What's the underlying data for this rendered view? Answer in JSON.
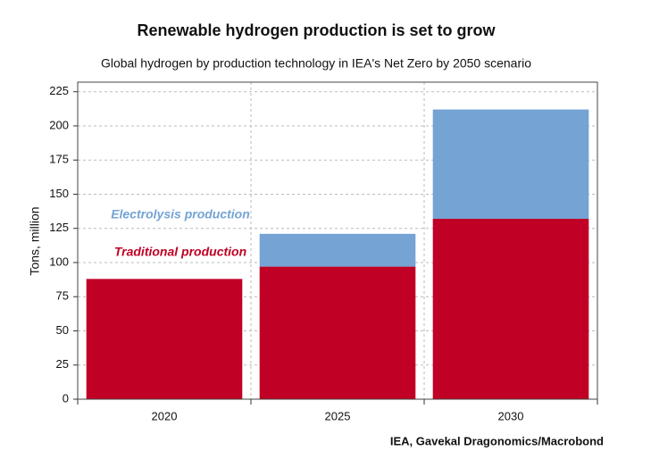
{
  "chart_data": {
    "type": "stacked_bar",
    "title": "Renewable hydrogen production is set to grow",
    "subtitle": "Global hydrogen by production technology in IEA's Net Zero by 2050 scenario",
    "y_label": "Tons, million",
    "source": "IEA, Gavekal Dragonomics/Macrobond",
    "categories": [
      "2020",
      "2025",
      "2030"
    ],
    "series": [
      {
        "name": "Traditional production",
        "color": "#c00024",
        "values": [
          88,
          97,
          132
        ]
      },
      {
        "name": "Electrolysis production",
        "color": "#74a3d4",
        "values": [
          0,
          24,
          80
        ]
      }
    ],
    "ylim": [
      0,
      232
    ],
    "yticks": [
      0,
      25,
      50,
      75,
      100,
      125,
      150,
      175,
      200,
      225
    ],
    "grid": true
  }
}
